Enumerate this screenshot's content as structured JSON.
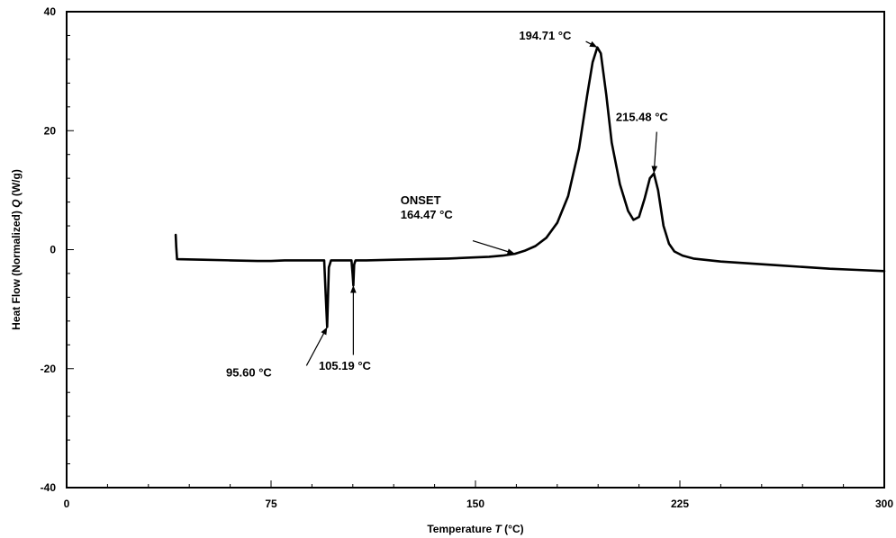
{
  "chart_data": {
    "type": "line",
    "title": "",
    "xlabel_text": "Temperature ",
    "xlabel_var": "T",
    "xlabel_unit": " (°C)",
    "ylabel_text": "Heat Flow (Normalized) ",
    "ylabel_var": "Q",
    "ylabel_unit": "  (W/g)",
    "xlim": [
      0,
      300
    ],
    "ylim": [
      -40,
      40
    ],
    "xticks": [
      0,
      75,
      150,
      225,
      300
    ],
    "yticks": [
      40,
      20,
      0,
      -20,
      -40
    ],
    "xtick_labels": [
      "0",
      "75",
      "150",
      "225",
      "300"
    ],
    "ytick_labels": [
      "40",
      "20",
      "0",
      "-20",
      "-40"
    ],
    "grid": false,
    "line_color": "#000000",
    "series": [
      {
        "points": [
          [
            40,
            2.5
          ],
          [
            40.2,
            0.5
          ],
          [
            40.5,
            -1.6
          ],
          [
            50,
            -1.7
          ],
          [
            60,
            -1.8
          ],
          [
            70,
            -1.9
          ],
          [
            75,
            -1.9
          ],
          [
            80,
            -1.8
          ],
          [
            90,
            -1.8
          ],
          [
            94.5,
            -1.8
          ],
          [
            95.1,
            -8
          ],
          [
            95.6,
            -13
          ],
          [
            96.2,
            -3
          ],
          [
            97,
            -1.8
          ],
          [
            100,
            -1.8
          ],
          [
            104.5,
            -1.8
          ],
          [
            104.9,
            -4
          ],
          [
            105.19,
            -6
          ],
          [
            105.5,
            -2.5
          ],
          [
            106,
            -1.8
          ],
          [
            110,
            -1.8
          ],
          [
            120,
            -1.7
          ],
          [
            130,
            -1.6
          ],
          [
            140,
            -1.5
          ],
          [
            150,
            -1.3
          ],
          [
            155,
            -1.2
          ],
          [
            160,
            -1.0
          ],
          [
            164.47,
            -0.7
          ],
          [
            168,
            -0.2
          ],
          [
            172,
            0.6
          ],
          [
            176,
            2
          ],
          [
            180,
            4.5
          ],
          [
            184,
            9
          ],
          [
            188,
            17
          ],
          [
            191,
            26
          ],
          [
            193,
            31.5
          ],
          [
            194.71,
            34
          ],
          [
            196,
            33
          ],
          [
            198,
            26
          ],
          [
            200,
            18
          ],
          [
            203,
            11
          ],
          [
            206,
            6.5
          ],
          [
            208,
            5
          ],
          [
            210,
            5.5
          ],
          [
            212,
            8.5
          ],
          [
            214,
            12
          ],
          [
            215.48,
            12.8
          ],
          [
            217,
            10
          ],
          [
            219,
            4
          ],
          [
            221,
            1
          ],
          [
            223,
            -0.3
          ],
          [
            226,
            -1.0
          ],
          [
            230,
            -1.5
          ],
          [
            240,
            -2.0
          ],
          [
            250,
            -2.3
          ],
          [
            260,
            -2.6
          ],
          [
            270,
            -2.9
          ],
          [
            280,
            -3.2
          ],
          [
            290,
            -3.4
          ],
          [
            300,
            -3.6
          ]
        ]
      }
    ],
    "annotations": [
      {
        "lines": [
          "194.71 °C"
        ],
        "x": 194.71,
        "y": 34.0,
        "label_x": 166,
        "label_y": 35.3,
        "anchor": "start"
      },
      {
        "lines": [
          "215.48 °C"
        ],
        "x": 215.48,
        "y": 12.8,
        "label_x": 201.5,
        "label_y": 21.6,
        "anchor": "start"
      },
      {
        "lines": [
          "ONSET",
          "164.47 °C"
        ],
        "x": 164.47,
        "y": -0.7,
        "label_x": 122.5,
        "label_y": 7.6,
        "anchor": "start"
      },
      {
        "lines": [
          "95.60 °C"
        ],
        "x": 95.6,
        "y": -13.0,
        "label_x": 58.5,
        "label_y": -21.3,
        "anchor": "start"
      },
      {
        "lines": [
          "105.19 °C"
        ],
        "x": 105.19,
        "y": -6.0,
        "label_x": 92.5,
        "label_y": -20.2,
        "anchor": "start"
      }
    ]
  }
}
